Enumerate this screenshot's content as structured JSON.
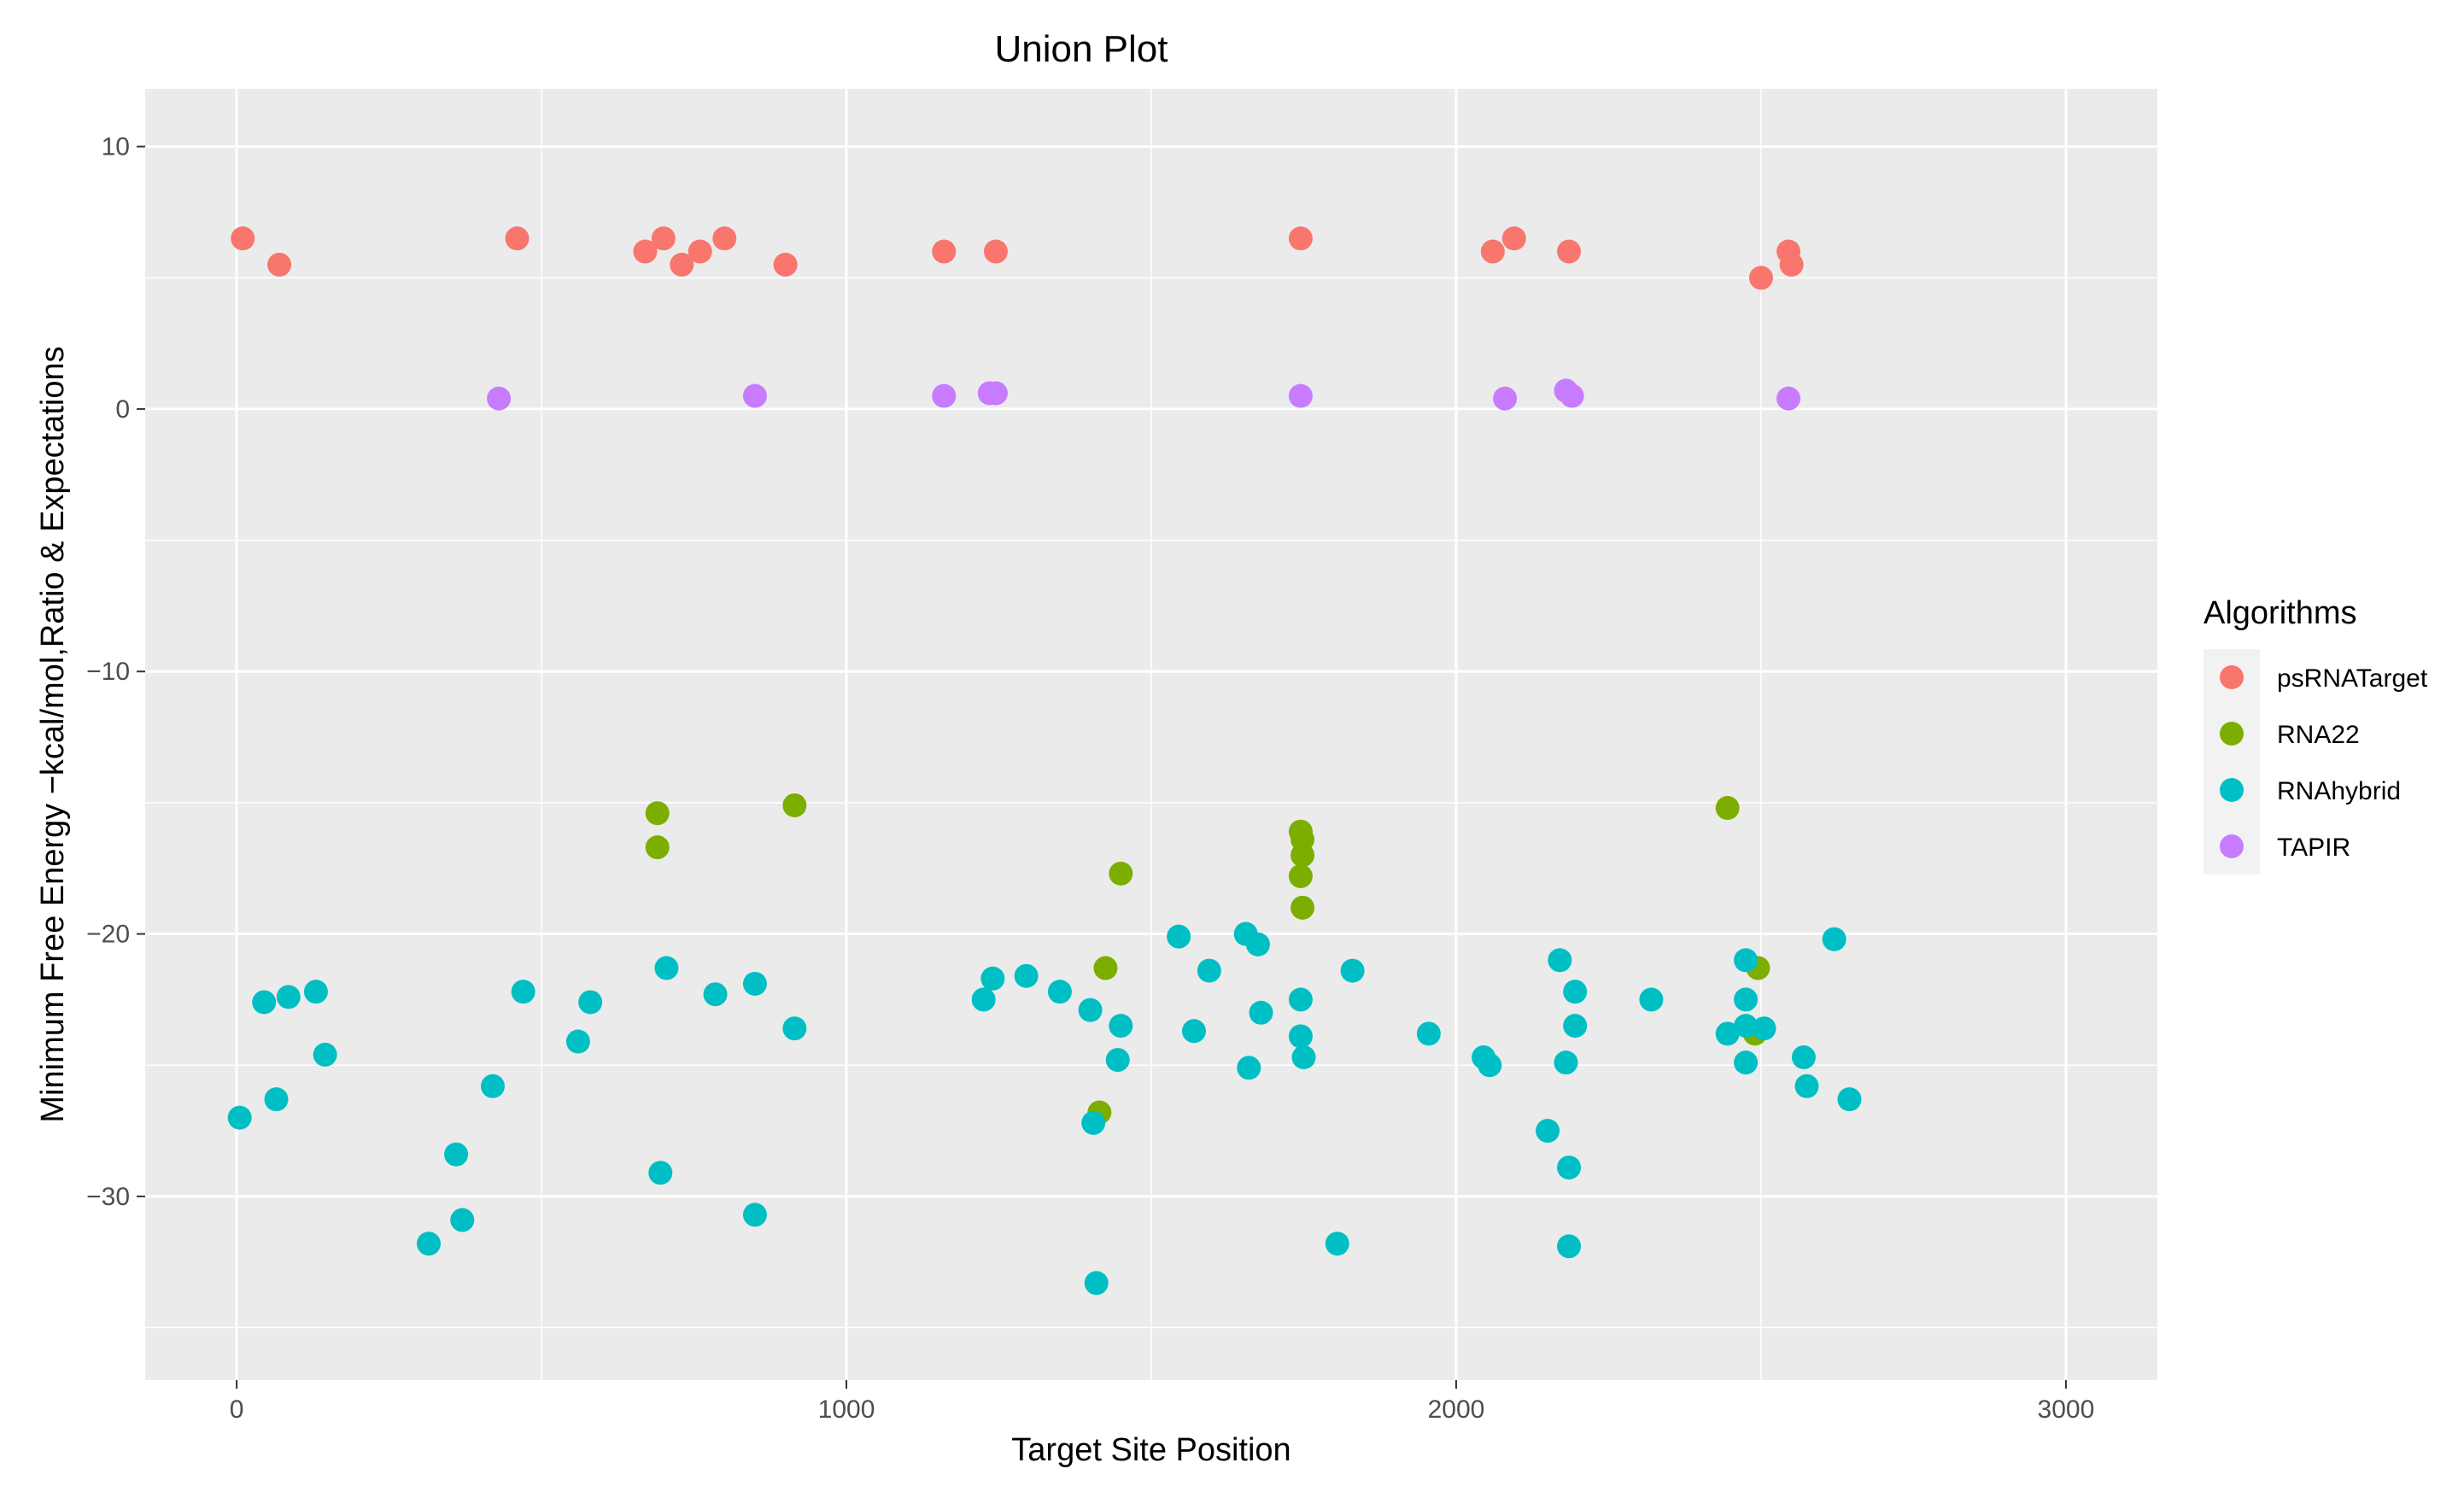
{
  "chart_data": {
    "type": "scatter",
    "title": "Union Plot",
    "xlabel": "Target Site Position",
    "ylabel": "Minimum Free Energy −kcal/mol,Ratio & Expectations",
    "xlim": [
      -150,
      3150
    ],
    "ylim": [
      -37,
      12.2
    ],
    "x_ticks": [
      0,
      1000,
      2000,
      3000
    ],
    "x_tick_labels": [
      "0",
      "1000",
      "2000",
      "3000"
    ],
    "y_ticks": [
      10,
      0,
      -10,
      -20,
      -30
    ],
    "y_tick_labels": [
      "10",
      "0",
      "−10",
      "−20",
      "−30"
    ],
    "grid": true,
    "legend": {
      "title": "Algorithms",
      "position": "right"
    },
    "colors": {
      "panel_bg": "#ebebeb",
      "grid": "#ffffff"
    },
    "series": [
      {
        "name": "psRNATarget",
        "color": "#f8766d",
        "points": [
          [
            10,
            6.5
          ],
          [
            70,
            5.5
          ],
          [
            460,
            6.5
          ],
          [
            670,
            6.0
          ],
          [
            700,
            6.5
          ],
          [
            730,
            5.5
          ],
          [
            760,
            6.0
          ],
          [
            800,
            6.5
          ],
          [
            900,
            5.5
          ],
          [
            1160,
            6.0
          ],
          [
            1245,
            6.0
          ],
          [
            1745,
            6.5
          ],
          [
            2060,
            6.0
          ],
          [
            2095,
            6.5
          ],
          [
            2185,
            6.0
          ],
          [
            2500,
            5.0
          ],
          [
            2545,
            6.0
          ],
          [
            2550,
            5.5
          ]
        ]
      },
      {
        "name": "RNA22",
        "color": "#7cae00",
        "points": [
          [
            690,
            -15.4
          ],
          [
            690,
            -16.7
          ],
          [
            915,
            -15.1
          ],
          [
            1415,
            -26.8
          ],
          [
            1425,
            -21.3
          ],
          [
            1450,
            -17.7
          ],
          [
            1745,
            -16.1
          ],
          [
            1748,
            -16.4
          ],
          [
            1748,
            -17.0
          ],
          [
            1745,
            -17.8
          ],
          [
            1748,
            -19.0
          ],
          [
            2445,
            -15.2
          ],
          [
            2490,
            -23.8
          ],
          [
            2495,
            -21.3
          ]
        ]
      },
      {
        "name": "RNAhybrid",
        "color": "#00bfc4",
        "points": [
          [
            5,
            -27.0
          ],
          [
            45,
            -22.6
          ],
          [
            65,
            -26.3
          ],
          [
            85,
            -22.4
          ],
          [
            130,
            -22.2
          ],
          [
            145,
            -24.6
          ],
          [
            315,
            -31.8
          ],
          [
            360,
            -28.4
          ],
          [
            370,
            -30.9
          ],
          [
            420,
            -25.8
          ],
          [
            470,
            -22.2
          ],
          [
            560,
            -24.1
          ],
          [
            580,
            -22.6
          ],
          [
            695,
            -29.1
          ],
          [
            705,
            -21.3
          ],
          [
            785,
            -22.3
          ],
          [
            850,
            -21.9
          ],
          [
            850,
            -30.7
          ],
          [
            915,
            -23.6
          ],
          [
            1225,
            -22.5
          ],
          [
            1240,
            -21.7
          ],
          [
            1295,
            -21.6
          ],
          [
            1350,
            -22.2
          ],
          [
            1400,
            -22.9
          ],
          [
            1405,
            -27.2
          ],
          [
            1410,
            -33.3
          ],
          [
            1445,
            -24.8
          ],
          [
            1450,
            -23.5
          ],
          [
            1545,
            -20.1
          ],
          [
            1570,
            -23.7
          ],
          [
            1595,
            -21.4
          ],
          [
            1655,
            -20.0
          ],
          [
            1660,
            -25.1
          ],
          [
            1675,
            -20.4
          ],
          [
            1680,
            -23.0
          ],
          [
            1745,
            -22.5
          ],
          [
            1745,
            -23.9
          ],
          [
            1750,
            -24.7
          ],
          [
            1805,
            -31.8
          ],
          [
            1830,
            -21.4
          ],
          [
            1955,
            -23.8
          ],
          [
            2045,
            -24.7
          ],
          [
            2055,
            -25.0
          ],
          [
            2150,
            -27.5
          ],
          [
            2170,
            -21.0
          ],
          [
            2180,
            -24.9
          ],
          [
            2185,
            -28.9
          ],
          [
            2185,
            -31.9
          ],
          [
            2195,
            -22.2
          ],
          [
            2195,
            -23.5
          ],
          [
            2320,
            -22.5
          ],
          [
            2445,
            -23.8
          ],
          [
            2475,
            -21.0
          ],
          [
            2475,
            -22.5
          ],
          [
            2475,
            -23.5
          ],
          [
            2475,
            -24.9
          ],
          [
            2505,
            -23.6
          ],
          [
            2570,
            -24.7
          ],
          [
            2575,
            -25.8
          ],
          [
            2620,
            -20.2
          ],
          [
            2645,
            -26.3
          ]
        ]
      },
      {
        "name": "TAPIR",
        "color": "#c77cff",
        "points": [
          [
            430,
            0.4
          ],
          [
            850,
            0.5
          ],
          [
            1160,
            0.5
          ],
          [
            1235,
            0.6
          ],
          [
            1245,
            0.6
          ],
          [
            1745,
            0.5
          ],
          [
            2080,
            0.4
          ],
          [
            2180,
            0.7
          ],
          [
            2190,
            0.5
          ],
          [
            2545,
            0.4
          ]
        ]
      }
    ]
  }
}
